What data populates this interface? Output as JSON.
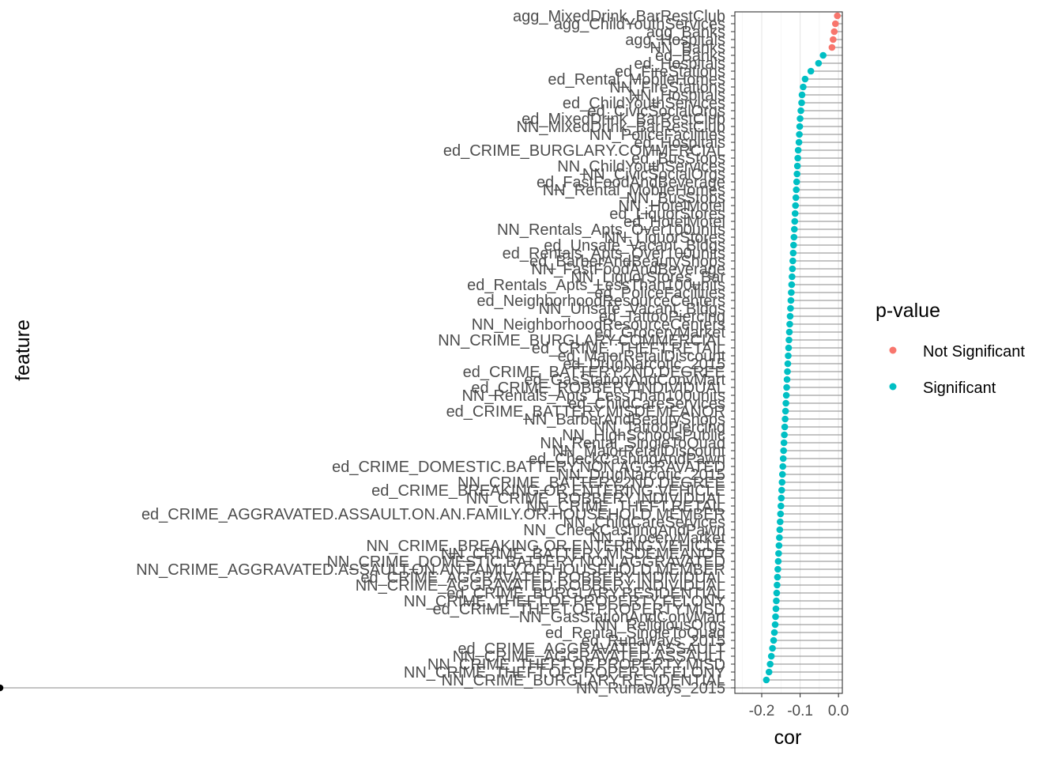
{
  "chart_data": {
    "type": "scatter",
    "subtype": "lollipop",
    "xlabel": "cor",
    "ylabel": "feature",
    "xlim": [
      -0.27,
      0.01
    ],
    "x_ticks": [
      -0.2,
      -0.1,
      0.0
    ],
    "x_tick_labels": [
      "-0.2",
      "-0.1",
      "0.0"
    ],
    "grid": true,
    "legend": {
      "title": "p-value",
      "position": "right",
      "entries": [
        {
          "label": "Not Significant",
          "color": "#F8766D"
        },
        {
          "label": "Significant",
          "color": "#00BFC4"
        }
      ]
    },
    "features": [
      "agg_MixedDrink_BarRestClub",
      "agg_ChildYouthServices",
      "agg_Banks",
      "agg_Hospitals",
      "NN_Banks",
      "ed_Banks",
      "ed_Hospitals",
      "ed_FireStations",
      "ed_Rental_MobileHomes",
      "NN_FireStations",
      "NN_Hospitals",
      "ed_ChildYouthServices",
      "ed_CivicSocialOrgs",
      "ed_MixedDrink_BarRestClub",
      "NN_MixedDrink_BarRestClub",
      "NN_PoliceFacilities",
      "ed_Hospitals",
      "ed_CRIME_BURGLARY.COMMERCIAL",
      "ed_BusStops",
      "NN_ChildYouthServices",
      "NN_CivicSocialOrgs",
      "ed_FastFoodAndBeverage",
      "NN_Rental_MobileHomes",
      "NN_BusStops",
      "NN_HotelMotel",
      "ed_LiquorStores",
      "ed_HotelMotel",
      "NN_Rentals_Apts_Over100units",
      "NN_LiquorStores",
      "ed_Unsafe_Vacant_Bldgs",
      "ed_Rentals_Apts_Over100units",
      "ed_BarberAndBeautyShops",
      "NN_FastFoodAndBeverage",
      "NN_LiquorStores_Bar",
      "ed_Rentals_Apts_LessThan100units",
      "ed_PoliceFacilities",
      "ed_NeighborhoodResourceCenters",
      "NN_Unsafe_Vacant_Bldgs",
      "ed_TattooPiercing",
      "NN_NeighborhoodResourceCenters",
      "ed_GroceryMarket",
      "NN_CRIME_BURGLARY.COMMERCIAL",
      "ed_CRIME_THEFT.RETAIL",
      "ed_MajorRetailDiscount",
      "ed_DrugNarcotic_2015",
      "ed_CRIME_BATTERY.2ND.DEGREE",
      "ed_GasStationAndConvMart",
      "ed_CRIME_ROBBERY.INDIVIDUAL",
      "NN_Rentals_Apts_LessThan100units",
      "ed_ChildCareServices",
      "ed_CRIME_BATTERY.MISDEMEANOR",
      "NN_BarberAndBeautyShops",
      "NN_TattooPiercing",
      "NN_HighSchoolsPublic",
      "NN_Rental_SingleToQuad",
      "NN_MajorRetailDiscount",
      "ed_CheckCashingAndPawn",
      "ed_CRIME_DOMESTIC.BATTERY.NON.AGGRAVATED",
      "NN_DrugNarcotic_2015",
      "NN_CRIME_BATTERY.2ND.DEGREE",
      "ed_CRIME_BREAKING.OR.ENTERING.VEHICLE",
      "NN_CRIME_ROBBERY.INDIVIDUAL",
      "NN_CRIME_THEFT.RETAIL",
      "ed_CRIME_AGGRAVATED.ASSAULT.ON.AN.FAMILY.OR.HOUSEHOLD.MEMBER",
      "NN_ChildCareServices",
      "NN_CheckCashingAndPawn",
      "NN_GroceryMarket",
      "NN_CRIME_BREAKING.OR.ENTERING.VEHICLE",
      "NN_CRIME_BATTERY.MISDEMEANOR",
      "NN_CRIME_DOMESTIC.BATTERY.NON.AGGRAVATED",
      "NN_CRIME_AGGRAVATED.ASSAULT.ON.AN.FAMILY.OR.HOUSEHOLD.MEMBER",
      "ed_CRIME_AGGRAVATED.ROBBERY.INDIVIDUAL",
      "NN_CRIME_AGGRAVATED.ROBBERY.INDIVIDUAL",
      "ed_CRIME_BURGLARY.RESIDENTIAL",
      "NN_CRIME_THEFT.OF.PROPERTY.FELONY",
      "ed_CRIME_THEFT.OF.PROPERTY.MISD",
      "NN_GasStationAndConvMart",
      "NN_ReligiousOrgs",
      "ed_Rental_SingleToQuad",
      "ed_Runaways_2015",
      "ed_CRIME_AGGRAVATED.ASSAULT",
      "NN_CRIME_AGGRAVATED.ASSAULT",
      "NN_CRIME_THEFT.OF.PROPERTY.MISD",
      "NN_CRIME_THEFT.OF.PROPERTY.FELONY",
      "NN_CRIME_BURGLARY.RESIDENTIAL",
      "NN_Runaways_2015"
    ],
    "cor": [
      -0.003,
      -0.008,
      -0.011,
      -0.014,
      -0.017,
      -0.04,
      -0.052,
      -0.072,
      -0.087,
      -0.092,
      -0.095,
      -0.096,
      -0.098,
      -0.1,
      -0.101,
      -0.102,
      -0.103,
      -0.105,
      -0.106,
      -0.107,
      -0.108,
      -0.109,
      -0.11,
      -0.111,
      -0.112,
      -0.113,
      -0.114,
      -0.115,
      -0.116,
      -0.117,
      -0.118,
      -0.119,
      -0.12,
      -0.121,
      -0.122,
      -0.123,
      -0.124,
      -0.125,
      -0.126,
      -0.127,
      -0.128,
      -0.129,
      -0.13,
      -0.131,
      -0.132,
      -0.133,
      -0.134,
      -0.135,
      -0.136,
      -0.137,
      -0.138,
      -0.139,
      -0.14,
      -0.141,
      -0.142,
      -0.143,
      -0.144,
      -0.145,
      -0.146,
      -0.147,
      -0.148,
      -0.149,
      -0.15,
      -0.151,
      -0.152,
      -0.153,
      -0.154,
      -0.155,
      -0.156,
      -0.157,
      -0.158,
      -0.159,
      -0.16,
      -0.161,
      -0.162,
      -0.163,
      -0.164,
      -0.165,
      -0.167,
      -0.169,
      -0.172,
      -0.175,
      -0.178,
      -0.181,
      -0.188
    ],
    "significance": [
      "Not Significant",
      "Not Significant",
      "Not Significant",
      "Not Significant",
      "Not Significant",
      "Significant",
      "Significant",
      "Significant",
      "Significant",
      "Significant",
      "Significant",
      "Significant",
      "Significant",
      "Significant",
      "Significant",
      "Significant",
      "Significant",
      "Significant",
      "Significant",
      "Significant",
      "Significant",
      "Significant",
      "Significant",
      "Significant",
      "Significant",
      "Significant",
      "Significant",
      "Significant",
      "Significant",
      "Significant",
      "Significant",
      "Significant",
      "Significant",
      "Significant",
      "Significant",
      "Significant",
      "Significant",
      "Significant",
      "Significant",
      "Significant",
      "Significant",
      "Significant",
      "Significant",
      "Significant",
      "Significant",
      "Significant",
      "Significant",
      "Significant",
      "Significant",
      "Significant",
      "Significant",
      "Significant",
      "Significant",
      "Significant",
      "Significant",
      "Significant",
      "Significant",
      "Significant",
      "Significant",
      "Significant",
      "Significant",
      "Significant",
      "Significant",
      "Significant",
      "Significant",
      "Significant",
      "Significant",
      "Significant",
      "Significant",
      "Significant",
      "Significant",
      "Significant",
      "Significant",
      "Significant",
      "Significant",
      "Significant",
      "Significant",
      "Significant",
      "Significant",
      "Significant",
      "Significant",
      "Significant",
      "Significant",
      "Significant",
      "Significant"
    ]
  }
}
